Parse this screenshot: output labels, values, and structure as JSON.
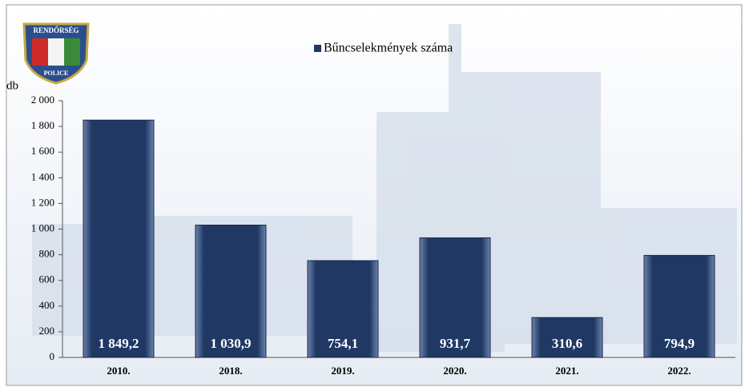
{
  "chart_data": {
    "type": "bar",
    "y_axis_label": "db",
    "categories": [
      "2010.",
      "2018.",
      "2019.",
      "2020.",
      "2021.",
      "2022."
    ],
    "series": [
      {
        "name": "Bűncselekmények száma",
        "color": "#1f3864",
        "values": [
          1849.2,
          1030.9,
          754.1,
          931.7,
          310.6,
          794.9
        ],
        "value_labels": [
          "1 849,2",
          "1 030,9",
          "754,1",
          "931,7",
          "310,6",
          "794,9"
        ]
      }
    ],
    "ylim": [
      0,
      2000
    ],
    "yticks": [
      0,
      200,
      400,
      600,
      800,
      {
        "value": 1000,
        "label": "1 000"
      },
      {
        "value": 1200,
        "label": "1 200"
      },
      {
        "value": 1400,
        "label": "1 400"
      },
      {
        "value": 1600,
        "label": "1 600"
      },
      {
        "value": 1800,
        "label": "1 800"
      },
      {
        "value": 2000,
        "label": "2 000"
      }
    ],
    "legend": "top"
  },
  "logo": {
    "top": "RENDŐRSÉG",
    "bottom": "POLICE"
  }
}
